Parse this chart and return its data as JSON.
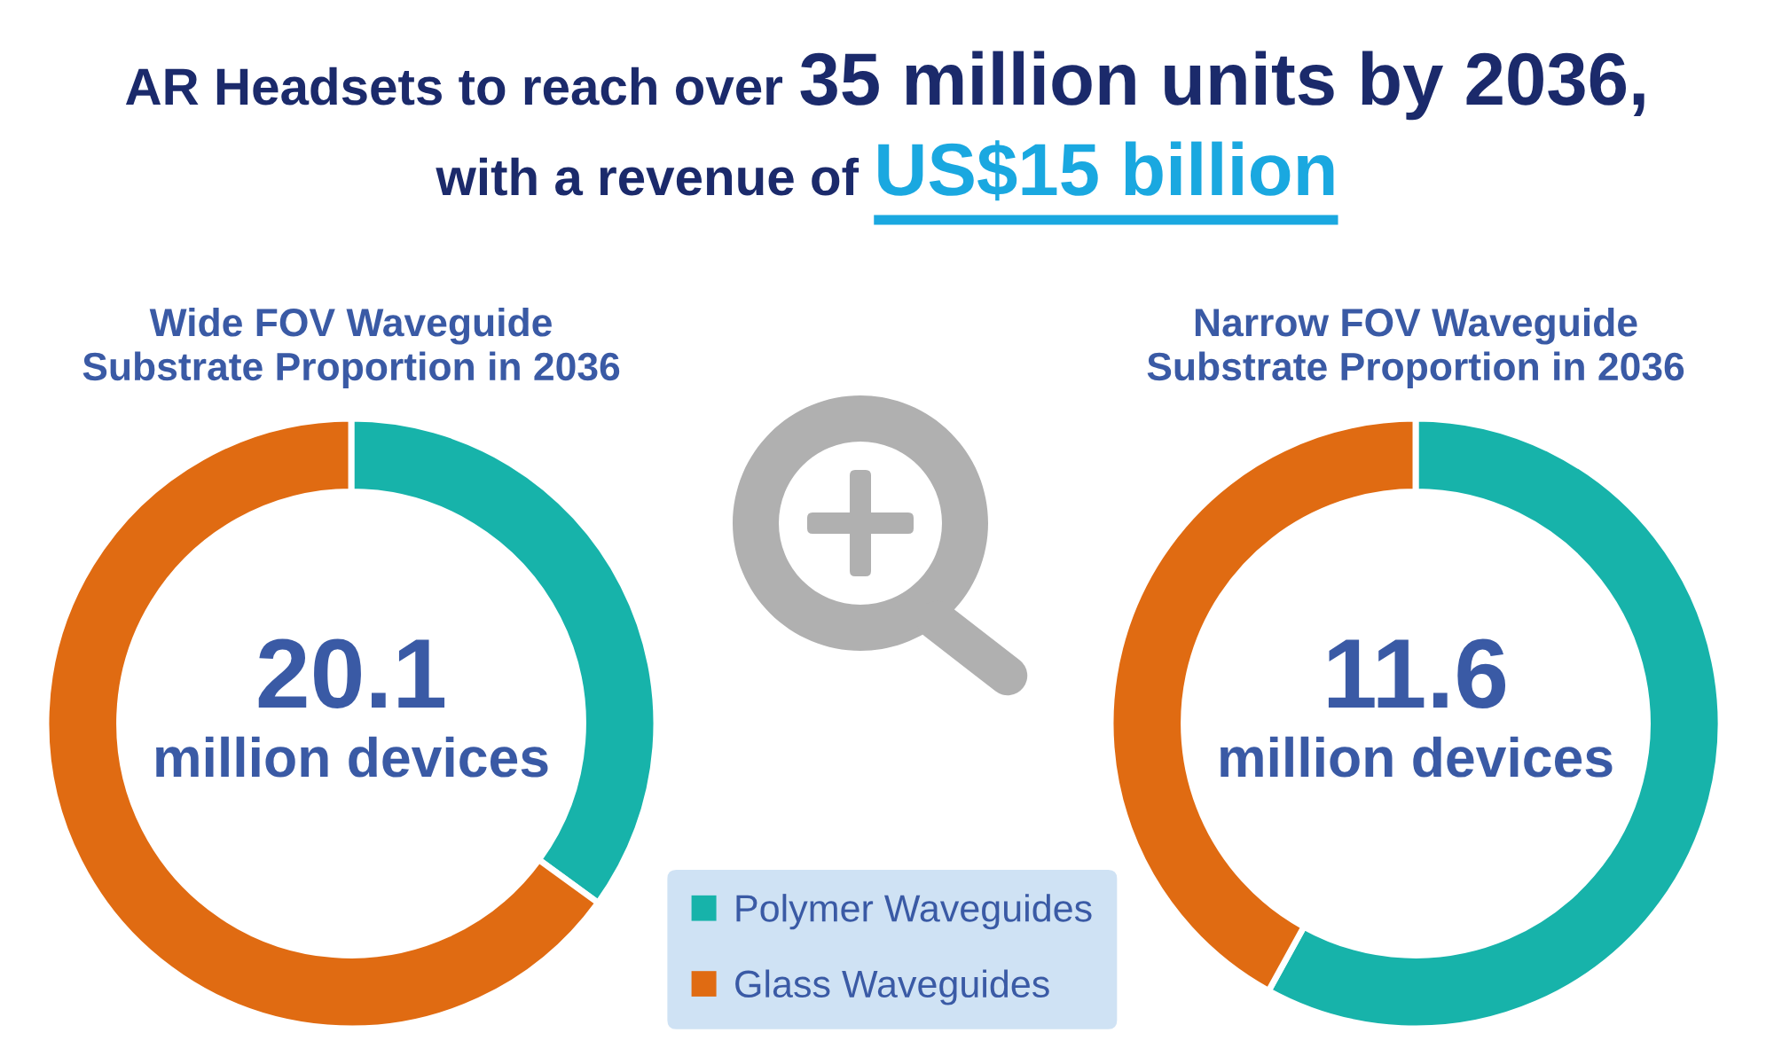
{
  "chart_data": [
    {
      "type": "donut",
      "title": "Wide FOV Waveguide\nSubstrate Proportion in 2036",
      "categories": [
        "Polymer Waveguides",
        "Glass Waveguides"
      ],
      "values": [
        35,
        65
      ],
      "colors": [
        "#17b3aa",
        "#e06b12"
      ],
      "legend": "bottom right",
      "annotations": [
        "AR Headsets to reach over",
        "35 million units by 2036,",
        "with a revenue of",
        "US$15 billion",
        "20.1",
        "million devices"
      ]
    },
    {
      "type": "donut",
      "title": "Narrow FOV Waveguide\nSubstrate Proportion in 2036",
      "categories": [
        null,
        null
      ],
      "values": [
        58,
        42
      ],
      "colors": [
        "#17b3aa",
        "#e06b12"
      ],
      "annotations": [
        "11.6",
        "million devices"
      ]
    }
  ]
}
